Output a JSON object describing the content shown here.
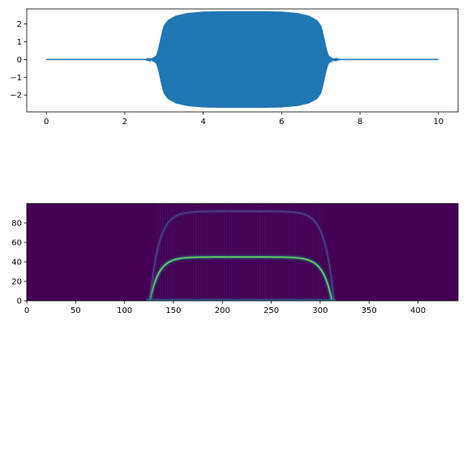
{
  "chart_data": [
    {
      "type": "line",
      "title": "",
      "xlabel": "",
      "ylabel": "",
      "xlim": [
        -0.5,
        10.5
      ],
      "ylim": [
        -2.95,
        2.85
      ],
      "xticks": [
        0,
        2,
        4,
        6,
        8,
        10
      ],
      "xtick_labels": [
        "0",
        "2",
        "4",
        "6",
        "8",
        "10"
      ],
      "yticks": [
        2,
        1,
        0,
        -1,
        -2
      ],
      "ytick_labels": [
        "2",
        "1",
        "0",
        "−1",
        "−2"
      ],
      "grid": false,
      "series": [
        {
          "color": "#1f77b4",
          "description_values": {
            "baseline_value": 0,
            "envelope": [
              [
                0,
                0
              ],
              [
                2.5,
                0.0
              ],
              [
                2.7,
                0.05
              ],
              [
                2.8,
                0.2
              ],
              [
                2.85,
                0.5
              ],
              [
                2.88,
                0.8
              ],
              [
                2.9,
                1.0
              ],
              [
                2.95,
                1.5
              ],
              [
                3.0,
                1.9
              ],
              [
                3.1,
                2.2
              ],
              [
                3.3,
                2.45
              ],
              [
                3.6,
                2.6
              ],
              [
                4.0,
                2.68
              ],
              [
                4.5,
                2.7
              ],
              [
                5.5,
                2.7
              ],
              [
                6.0,
                2.68
              ],
              [
                6.4,
                2.6
              ],
              [
                6.7,
                2.45
              ],
              [
                6.9,
                2.2
              ],
              [
                7.0,
                1.9
              ],
              [
                7.05,
                1.5
              ],
              [
                7.1,
                1.0
              ],
              [
                7.12,
                0.8
              ],
              [
                7.15,
                0.5
              ],
              [
                7.2,
                0.2
              ],
              [
                7.3,
                0.05
              ],
              [
                7.5,
                0.0
              ],
              [
                10,
                0
              ]
            ],
            "min_value": -2.7,
            "max_value": 2.7
          }
        }
      ]
    },
    {
      "type": "heatmap",
      "title": "",
      "xlabel": "",
      "ylabel": "",
      "xlim": [
        0,
        441
      ],
      "ylim": [
        0,
        100
      ],
      "xticks": [
        0,
        50,
        100,
        150,
        200,
        250,
        300,
        350,
        400
      ],
      "xtick_labels": [
        "0",
        "50",
        "100",
        "150",
        "200",
        "250",
        "300",
        "350",
        "400"
      ],
      "yticks": [
        80,
        60,
        40,
        20,
        0
      ],
      "ytick_labels": [
        "80",
        "60",
        "40",
        "20",
        "0"
      ],
      "colormap": "viridis",
      "background_color": "#440154",
      "features": [
        {
          "name": "fundamental",
          "x_start": 126,
          "x_end": 312,
          "y_peak": 45,
          "color": "#35b779"
        },
        {
          "name": "harmonic",
          "x_start": 126,
          "x_end": 314,
          "y_peak": 92,
          "color": "#3e4a89"
        },
        {
          "name": "baseline-band",
          "x_start": 126,
          "x_end": 312,
          "y_peak": 1,
          "color": "#2a788e"
        }
      ]
    }
  ]
}
